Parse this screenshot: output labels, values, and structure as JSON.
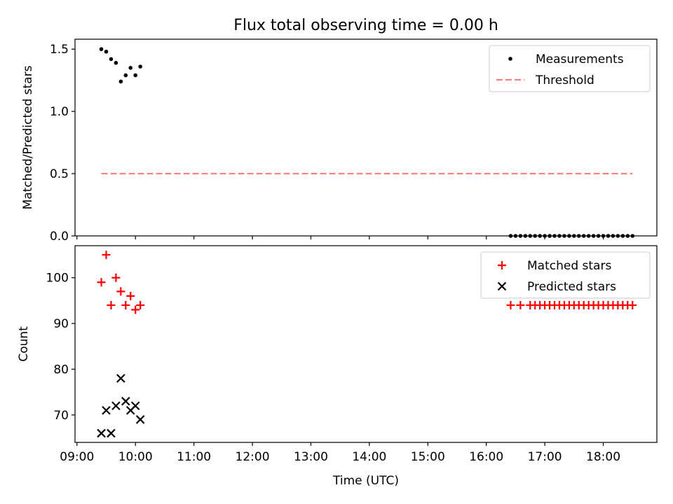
{
  "chart_data": {
    "type": "scatter",
    "title": "Flux total observing time = 0.00 h",
    "xlabel": "Time (UTC)",
    "x_ticks": [
      "09:00",
      "10:00",
      "11:00",
      "12:00",
      "13:00",
      "14:00",
      "15:00",
      "16:00",
      "17:00",
      "18:00"
    ],
    "xlim": [
      "08:58",
      "18:55"
    ],
    "panels": [
      {
        "id": "ratio",
        "ylabel": "Matched/Predicted stars",
        "ylim": [
          0,
          1.58
        ],
        "y_ticks": [
          0.0,
          0.5,
          1.0,
          1.5
        ],
        "y_tick_labels": [
          "0.0",
          "0.5",
          "1.0",
          "1.5"
        ],
        "legend": "top-right",
        "series": [
          {
            "name": "Measurements",
            "marker": "dot",
            "color": "#000000",
            "x": [
              "09:25",
              "09:30",
              "09:35",
              "09:40",
              "09:45",
              "09:50",
              "09:55",
              "10:00",
              "10:05",
              "16:25",
              "16:30",
              "16:35",
              "16:40",
              "16:45",
              "16:50",
              "16:55",
              "17:00",
              "17:05",
              "17:10",
              "17:15",
              "17:20",
              "17:25",
              "17:30",
              "17:35",
              "17:40",
              "17:45",
              "17:50",
              "17:55",
              "18:00",
              "18:05",
              "18:10",
              "18:15",
              "18:20",
              "18:25",
              "18:30"
            ],
            "y": [
              1.5,
              1.48,
              1.42,
              1.39,
              1.24,
              1.29,
              1.35,
              1.29,
              1.36,
              0,
              0,
              0,
              0,
              0,
              0,
              0,
              0,
              0,
              0,
              0,
              0,
              0,
              0,
              0,
              0,
              0,
              0,
              0,
              0,
              0,
              0,
              0,
              0,
              0,
              0
            ]
          },
          {
            "name": "Threshold",
            "marker": "dashed-line",
            "color": "#ff7f7f",
            "x": [
              "09:25",
              "18:30"
            ],
            "y": [
              0.5,
              0.5
            ]
          }
        ]
      },
      {
        "id": "counts",
        "ylabel": "Count",
        "ylim": [
          64,
          107
        ],
        "y_ticks": [
          70,
          80,
          90,
          100
        ],
        "y_tick_labels": [
          "70",
          "80",
          "90",
          "100"
        ],
        "legend": "top-right",
        "series": [
          {
            "name": "Matched stars",
            "marker": "plus",
            "color": "#ff0000",
            "x": [
              "09:25",
              "09:30",
              "09:35",
              "09:40",
              "09:45",
              "09:50",
              "09:55",
              "10:00",
              "10:05",
              "16:25",
              "16:35",
              "16:45",
              "16:50",
              "16:55",
              "17:00",
              "17:05",
              "17:10",
              "17:15",
              "17:20",
              "17:25",
              "17:30",
              "17:35",
              "17:40",
              "17:45",
              "17:50",
              "17:55",
              "18:00",
              "18:05",
              "18:10",
              "18:15",
              "18:20",
              "18:25",
              "18:30"
            ],
            "y": [
              99,
              105,
              94,
              100,
              97,
              94,
              96,
              93,
              94,
              94,
              94,
              94,
              94,
              94,
              94,
              94,
              94,
              94,
              94,
              94,
              94,
              94,
              94,
              94,
              94,
              94,
              94,
              94,
              94,
              94,
              94,
              94,
              94
            ]
          },
          {
            "name": "Predicted stars",
            "marker": "x",
            "color": "#000000",
            "x": [
              "09:25",
              "09:30",
              "09:35",
              "09:40",
              "09:45",
              "09:50",
              "09:55",
              "10:00",
              "10:05"
            ],
            "y": [
              66,
              71,
              66,
              72,
              78,
              73,
              71,
              72,
              69
            ]
          }
        ]
      }
    ]
  }
}
